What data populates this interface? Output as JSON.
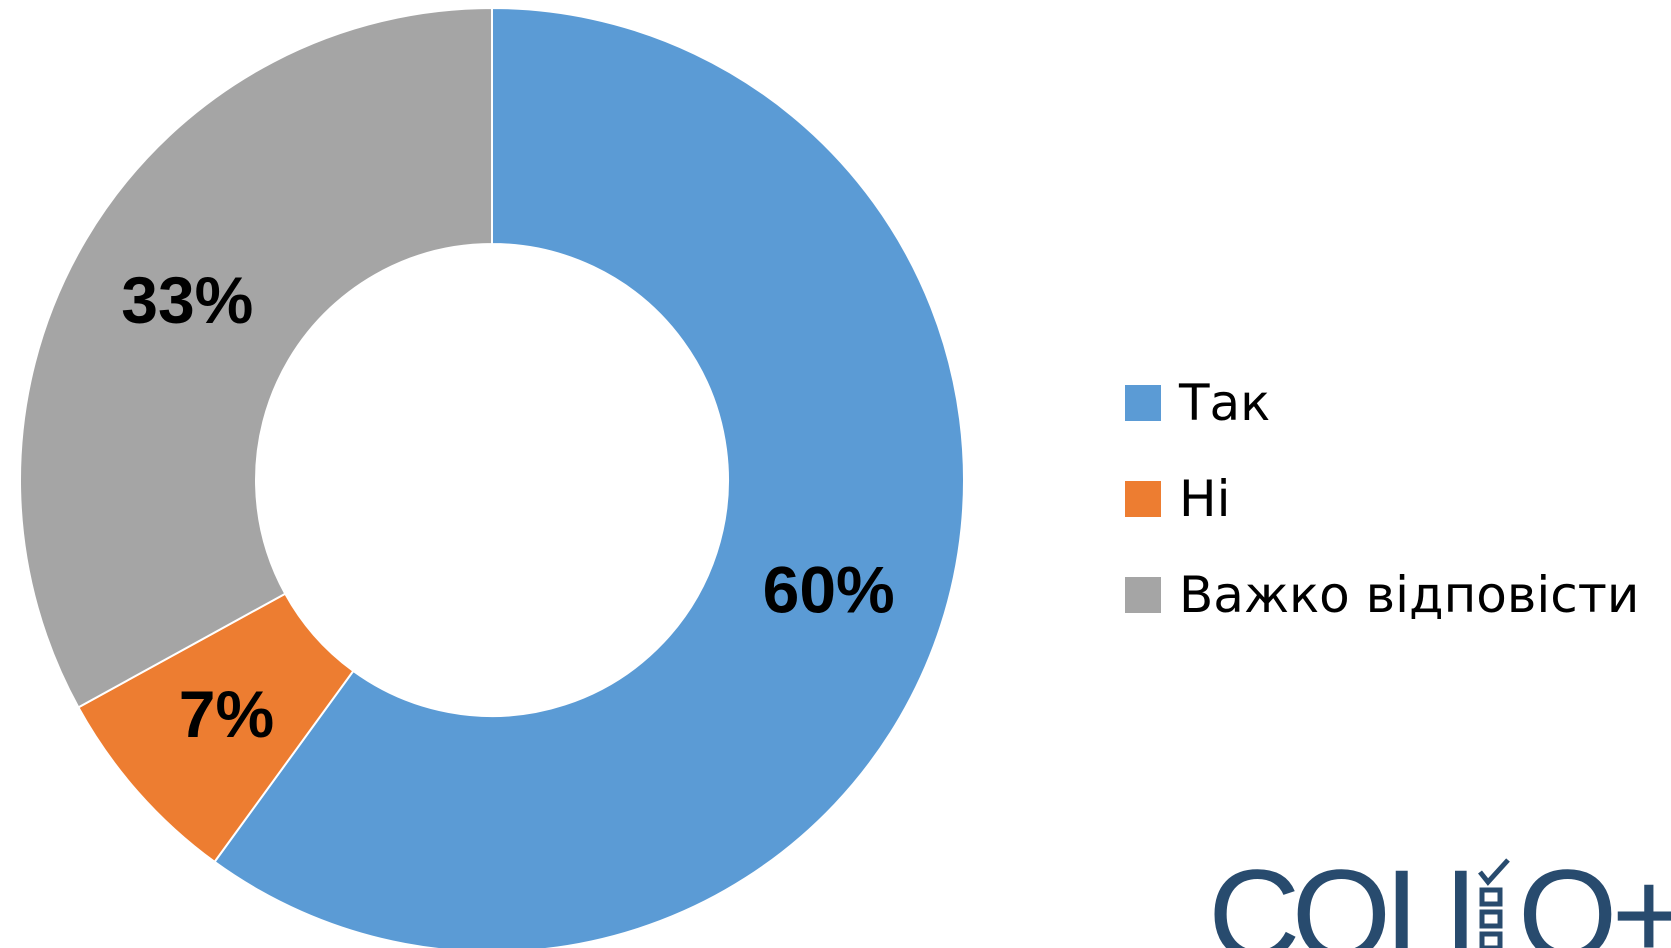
{
  "chart_data": {
    "type": "pie",
    "donut": true,
    "title": "",
    "slices": [
      {
        "label": "Так",
        "value": 60,
        "display": "60%",
        "color": "#5b9bd5"
      },
      {
        "label": "Ні",
        "value": 7,
        "display": "7%",
        "color": "#ed7d31"
      },
      {
        "label": "Важко відповісти",
        "value": 33,
        "display": "33%",
        "color": "#a5a5a5"
      }
    ],
    "start_angle": "12 o'clock",
    "direction": "clockwise",
    "legend_position": "right"
  },
  "logo": {
    "text_left": "СОЦ",
    "text_right": "О+",
    "color": "#284b6e"
  }
}
